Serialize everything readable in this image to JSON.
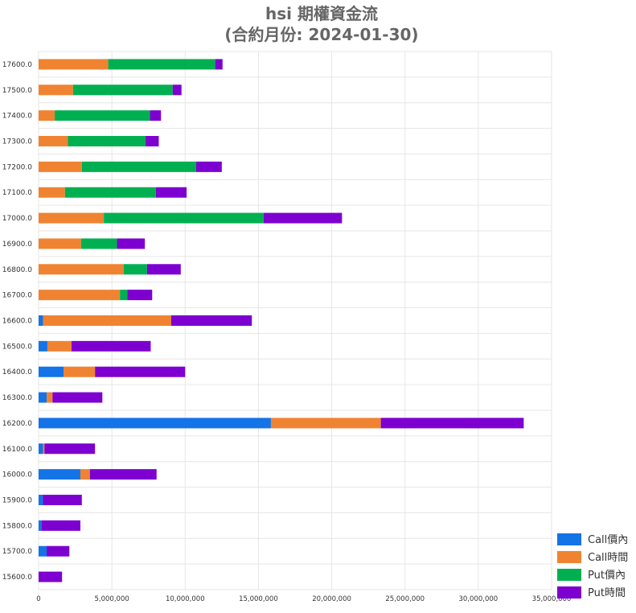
{
  "chart_data": {
    "type": "bar",
    "orientation": "horizontal",
    "stacked": true,
    "title": "hsi 期權資金流",
    "subtitle": "(合約月份: 2024-01-30)",
    "categories": [
      "17600.0",
      "17500.0",
      "17400.0",
      "17300.0",
      "17200.0",
      "17100.0",
      "17000.0",
      "16900.0",
      "16800.0",
      "16700.0",
      "16600.0",
      "16500.0",
      "16400.0",
      "16300.0",
      "16200.0",
      "16100.0",
      "16000.0",
      "15900.0",
      "15800.0",
      "15700.0",
      "15600.0"
    ],
    "series": [
      {
        "name": "Call價內",
        "color": "#1473e6",
        "values": [
          0,
          0,
          0,
          0,
          0,
          0,
          0,
          0,
          0,
          0,
          300000,
          600000,
          1700000,
          550000,
          15850000,
          300000,
          2850000,
          300000,
          200000,
          550000,
          0
        ]
      },
      {
        "name": "Call時間",
        "color": "#f08332",
        "values": [
          4750000,
          2350000,
          1100000,
          2000000,
          2950000,
          1800000,
          4450000,
          2900000,
          5800000,
          5550000,
          8750000,
          1650000,
          2150000,
          400000,
          7500000,
          100000,
          650000,
          0,
          0,
          0,
          0
        ]
      },
      {
        "name": "Put價內",
        "color": "#00b050",
        "values": [
          7300000,
          6800000,
          6500000,
          5300000,
          7800000,
          6200000,
          10900000,
          2450000,
          1600000,
          500000,
          0,
          0,
          0,
          0,
          0,
          0,
          0,
          0,
          0,
          0,
          0
        ]
      },
      {
        "name": "Put時間",
        "color": "#7d00d1",
        "values": [
          500000,
          600000,
          750000,
          900000,
          1750000,
          2100000,
          5350000,
          1900000,
          2300000,
          1700000,
          5500000,
          5400000,
          6150000,
          3400000,
          9750000,
          3450000,
          4550000,
          2650000,
          2650000,
          1550000,
          1600000
        ]
      }
    ],
    "xlim": [
      0,
      35000000
    ],
    "xticks": [
      "0",
      "5,000,000",
      "10,000,000",
      "15,000,000",
      "20,000,000",
      "25,000,000",
      "30,000,000",
      "35,000,000"
    ],
    "grid": true,
    "legend_position": "bottom-right"
  }
}
